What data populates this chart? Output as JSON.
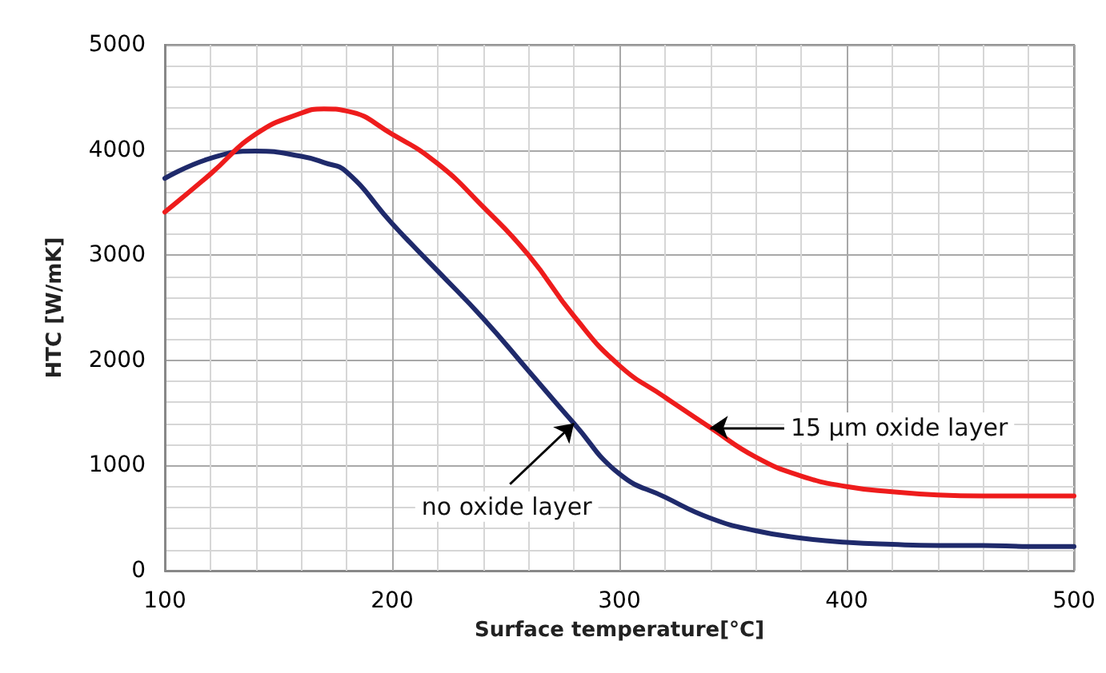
{
  "chart_data": {
    "type": "line",
    "xlabel": "Surface temperature[°C]",
    "ylabel": "HTC [W/mK]",
    "x": [
      100,
      120,
      140,
      160,
      170,
      180,
      200,
      220,
      240,
      260,
      280,
      300,
      320,
      340,
      360,
      380,
      400,
      420,
      440,
      460,
      480,
      500
    ],
    "series": [
      {
        "color": "#1f2a6b",
        "values": [
          3730,
          3920,
          3990,
          3940,
          3880,
          3790,
          3300,
          2850,
          2400,
          1900,
          1400,
          920,
          700,
          500,
          380,
          310,
          270,
          250,
          240,
          240,
          230,
          230
        ]
      },
      {
        "color": "#ee1c1c",
        "values": [
          3410,
          3770,
          4150,
          4350,
          4390,
          4370,
          4150,
          3870,
          3460,
          3000,
          2420,
          1950,
          1650,
          1360,
          1080,
          900,
          800,
          750,
          720,
          710,
          710,
          710
        ]
      }
    ],
    "annotations": [
      {
        "text": "no oxide layer",
        "x": 280,
        "y": 1400
      },
      {
        "text": "15 µm oxide layer",
        "x": 340,
        "y": 1360
      }
    ],
    "xlim": [
      100,
      500
    ],
    "xticks": [
      100,
      200,
      300,
      400,
      500
    ],
    "ylim": [
      0,
      5000
    ],
    "yticks": [
      0,
      1000,
      2000,
      3000,
      4000,
      5000
    ],
    "grid": true,
    "marker": "none",
    "line_style": "solid"
  }
}
